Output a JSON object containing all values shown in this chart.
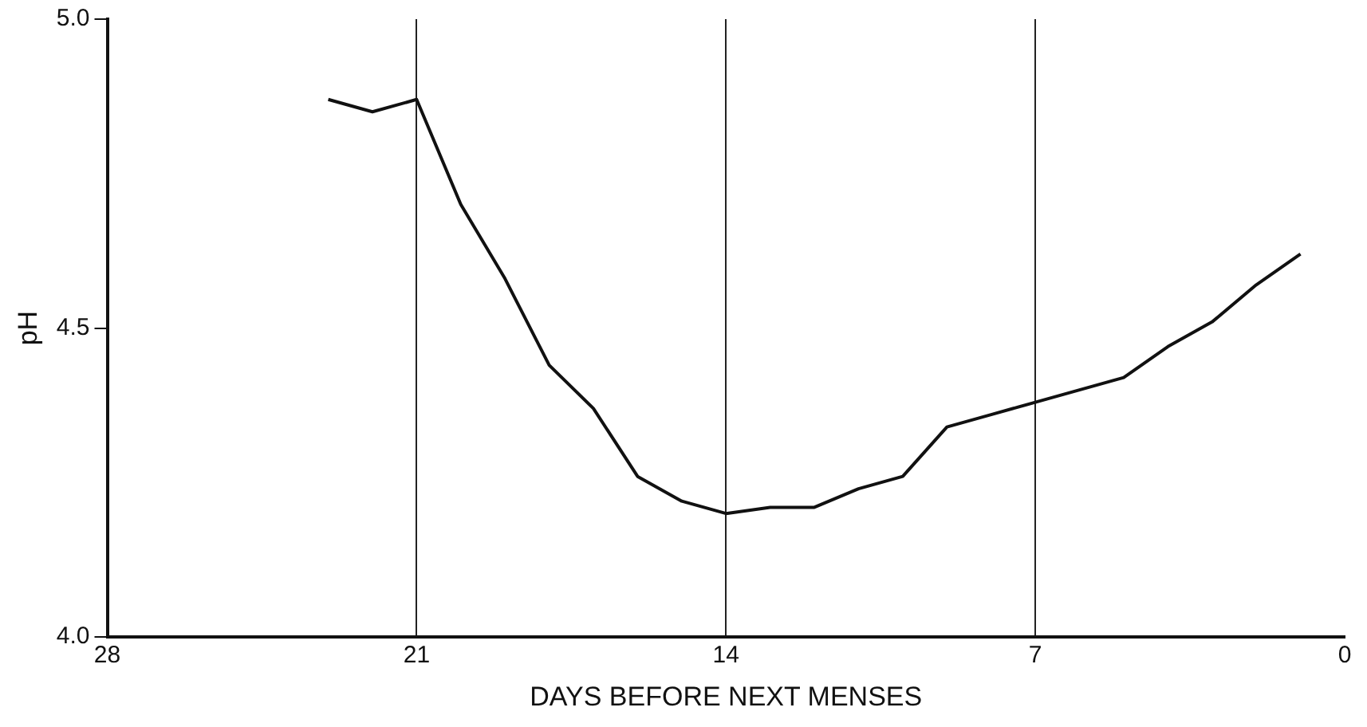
{
  "chart_data": {
    "type": "line",
    "xlabel": "DAYS BEFORE NEXT MENSES",
    "ylabel": "pH",
    "x": [
      23,
      22,
      21,
      20,
      19,
      18,
      17,
      16,
      15,
      14,
      13,
      12,
      11,
      10,
      9,
      8,
      7,
      6,
      5,
      4,
      3,
      2,
      1
    ],
    "values": [
      4.87,
      4.85,
      4.87,
      4.7,
      4.58,
      4.44,
      4.37,
      4.26,
      4.22,
      4.2,
      4.21,
      4.21,
      4.24,
      4.26,
      4.34,
      4.36,
      4.38,
      4.4,
      4.42,
      4.47,
      4.51,
      4.57,
      4.62
    ],
    "color": "#111111",
    "xlim": [
      28,
      0
    ],
    "xticks": [
      28,
      21,
      14,
      7,
      0
    ],
    "ylim": [
      4.0,
      5.0
    ],
    "yticks": [
      {
        "value": 4.0,
        "label": "4.0"
      },
      {
        "value": 4.5,
        "label": "4.5"
      },
      {
        "value": 5.0,
        "label": "5.0"
      }
    ],
    "grid": "x",
    "marker": "none",
    "line_style": "solid",
    "legend": false
  }
}
